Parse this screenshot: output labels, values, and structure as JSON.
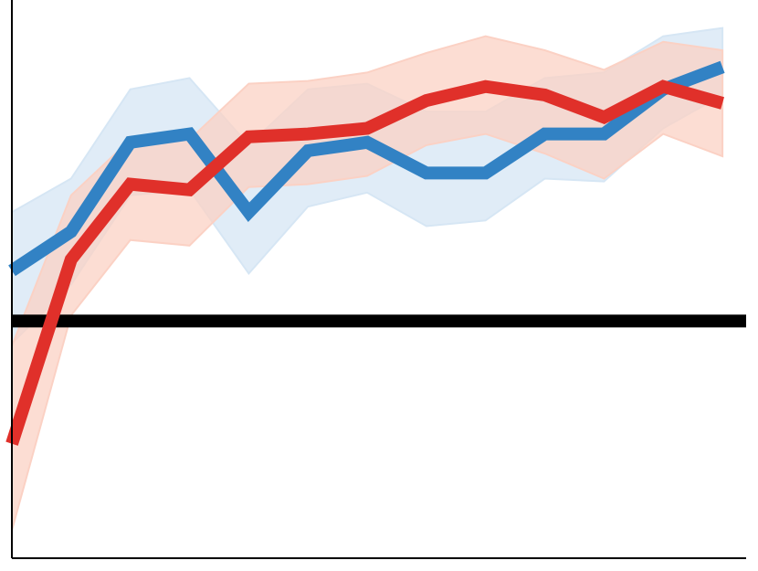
{
  "chart_data": {
    "type": "line",
    "title": "",
    "xlabel": "",
    "ylabel": "",
    "x": [
      0,
      1,
      2,
      3,
      4,
      5,
      6,
      7,
      8,
      9,
      10,
      11,
      12
    ],
    "xlim": [
      0,
      12.4
    ],
    "ylim": [
      0,
      1
    ],
    "grid": false,
    "legend": "none",
    "reference_line": {
      "y": 0.425,
      "color": "#000000"
    },
    "series": [
      {
        "color": "#3282c4",
        "band_color": "#d6e6f4",
        "values": [
          0.515,
          0.585,
          0.745,
          0.76,
          0.62,
          0.73,
          0.745,
          0.69,
          0.69,
          0.76,
          0.76,
          0.84,
          0.88
        ],
        "lower": [
          0.385,
          0.49,
          0.65,
          0.66,
          0.51,
          0.63,
          0.655,
          0.595,
          0.605,
          0.68,
          0.675,
          0.77,
          0.83
        ],
        "upper": [
          0.62,
          0.68,
          0.84,
          0.86,
          0.74,
          0.84,
          0.85,
          0.8,
          0.8,
          0.86,
          0.87,
          0.935,
          0.95
        ]
      },
      {
        "color": "#e0302a",
        "band_color": "#fbd1c4",
        "values": [
          0.205,
          0.535,
          0.67,
          0.66,
          0.755,
          0.76,
          0.77,
          0.82,
          0.845,
          0.83,
          0.79,
          0.845,
          0.815
        ],
        "lower": [
          0.05,
          0.435,
          0.57,
          0.56,
          0.665,
          0.67,
          0.685,
          0.74,
          0.76,
          0.725,
          0.68,
          0.76,
          0.72
        ],
        "upper": [
          0.38,
          0.65,
          0.75,
          0.75,
          0.85,
          0.855,
          0.87,
          0.905,
          0.935,
          0.91,
          0.875,
          0.925,
          0.91
        ]
      }
    ]
  }
}
